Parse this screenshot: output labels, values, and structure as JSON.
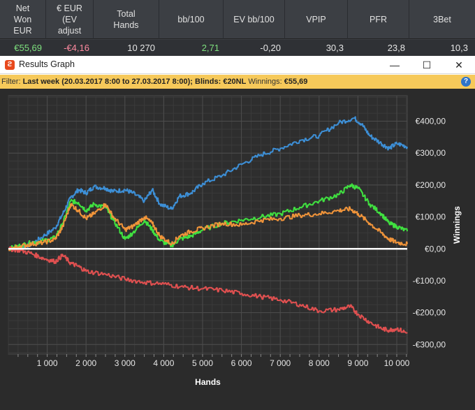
{
  "stats": {
    "headers": [
      "Net\nWon\nEUR",
      "€ EUR\n(EV\nadjust",
      "Total\nHands",
      "bb/100",
      "EV bb/100",
      "VPIP",
      "PFR",
      "3Bet"
    ],
    "values": [
      "€55,69",
      "-€4,16",
      "10 270",
      "2,71",
      "-0,20",
      "30,3",
      "23,8",
      "10,3"
    ],
    "value_colors": [
      "#7ee07e",
      "#ff8aa0",
      "#e6e6e6",
      "#7ee07e",
      "#e6e6e6",
      "#e6e6e6",
      "#e6e6e6",
      "#e6e6e6"
    ]
  },
  "window": {
    "title": "Results Graph",
    "minimize": "—",
    "maximize": "☐",
    "close": "✕"
  },
  "filter": {
    "prefix": "Filter: ",
    "range": "Last week (20.03.2017 8:00 to 27.03.2017 8:00); Blinds: €20NL",
    "winnings_label": " Winnings: ",
    "winnings_value": "€55,69",
    "help": "?"
  },
  "chart_data": {
    "type": "line",
    "xlabel": "Hands",
    "ylabel": "Winnings",
    "xlim": [
      0,
      10270
    ],
    "ylim": [
      -330,
      480
    ],
    "x_ticks": [
      1000,
      2000,
      3000,
      4000,
      5000,
      6000,
      7000,
      8000,
      9000,
      10000
    ],
    "x_tick_labels": [
      "1 000",
      "2 000",
      "3 000",
      "4 000",
      "5 000",
      "6 000",
      "7 000",
      "8 000",
      "9 000",
      "10 000"
    ],
    "y_ticks": [
      400,
      300,
      200,
      100,
      0,
      -100,
      -200,
      -300
    ],
    "y_tick_labels": [
      "€400,00",
      "€300,00",
      "€200,00",
      "€100,00",
      "€0,00",
      "-€100,00",
      "-€200,00",
      "-€300,00"
    ],
    "grid": true,
    "zero_line": true,
    "series": [
      {
        "color": "#3d8fd6",
        "x": [
          0,
          300,
          600,
          900,
          1200,
          1400,
          1600,
          1800,
          2000,
          2200,
          2500,
          2700,
          3000,
          3200,
          3500,
          3700,
          3900,
          4200,
          4400,
          4700,
          5000,
          5500,
          6000,
          6500,
          7000,
          7500,
          8000,
          8500,
          8900,
          9100,
          9300,
          9600,
          9800,
          10000,
          10270
        ],
        "values": [
          0,
          5,
          15,
          40,
          65,
          110,
          160,
          185,
          175,
          195,
          190,
          180,
          185,
          175,
          150,
          185,
          140,
          125,
          165,
          175,
          205,
          230,
          265,
          295,
          315,
          340,
          355,
          395,
          410,
          390,
          355,
          330,
          315,
          330,
          320
        ]
      },
      {
        "color": "#40e040",
        "x": [
          0,
          300,
          600,
          900,
          1200,
          1400,
          1600,
          1800,
          2000,
          2200,
          2500,
          2700,
          3000,
          3200,
          3500,
          3700,
          3900,
          4200,
          4400,
          4700,
          5000,
          5500,
          6000,
          6500,
          7000,
          7500,
          8000,
          8500,
          8800,
          9000,
          9300,
          9600,
          9800,
          10000,
          10270
        ],
        "values": [
          0,
          10,
          20,
          25,
          35,
          80,
          150,
          145,
          120,
          140,
          130,
          90,
          30,
          50,
          90,
          60,
          25,
          10,
          30,
          40,
          60,
          80,
          90,
          100,
          110,
          130,
          150,
          170,
          200,
          190,
          140,
          110,
          80,
          70,
          55
        ]
      },
      {
        "color": "#f0943a",
        "x": [
          0,
          300,
          600,
          900,
          1200,
          1400,
          1600,
          1800,
          2000,
          2200,
          2500,
          2700,
          3000,
          3200,
          3500,
          3700,
          3900,
          4200,
          4400,
          4700,
          5000,
          5500,
          6000,
          6500,
          7000,
          7500,
          8000,
          8500,
          8800,
          9000,
          9300,
          9600,
          9800,
          10000,
          10270
        ],
        "values": [
          0,
          8,
          15,
          20,
          30,
          70,
          140,
          120,
          95,
          110,
          140,
          100,
          60,
          70,
          100,
          80,
          40,
          15,
          40,
          55,
          65,
          80,
          75,
          90,
          95,
          105,
          110,
          120,
          125,
          110,
          80,
          50,
          30,
          20,
          15
        ]
      },
      {
        "color": "#e05050",
        "x": [
          0,
          300,
          600,
          900,
          1200,
          1400,
          1600,
          1800,
          2000,
          2500,
          3000,
          3500,
          4000,
          4500,
          5000,
          5500,
          6000,
          6500,
          7000,
          7500,
          8000,
          8500,
          8800,
          9000,
          9300,
          9600,
          9800,
          10000,
          10270
        ],
        "values": [
          0,
          -5,
          -15,
          -30,
          -40,
          -20,
          -45,
          -55,
          -70,
          -80,
          -95,
          -105,
          -110,
          -120,
          -125,
          -130,
          -140,
          -150,
          -160,
          -175,
          -195,
          -190,
          -180,
          -205,
          -230,
          -250,
          -255,
          -250,
          -265
        ]
      }
    ]
  }
}
